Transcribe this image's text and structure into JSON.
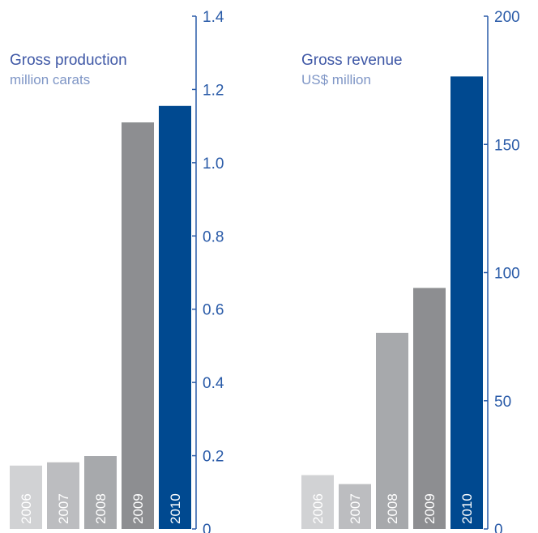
{
  "chart_data": [
    {
      "type": "bar",
      "title": "Gross production",
      "subtitle": "million carats",
      "categories": [
        "2006",
        "2007",
        "2008",
        "2009",
        "2010"
      ],
      "values": [
        0.173,
        0.182,
        0.199,
        1.11,
        1.155
      ],
      "ylim": [
        0,
        1.4
      ],
      "yticks": [
        "0",
        "0.2",
        "0.4",
        "0.6",
        "0.8",
        "1.0",
        "1.2",
        "1.4"
      ],
      "bar_colors": [
        "#d1d2d4",
        "#bcbdc0",
        "#a7a9ac",
        "#8d8e91",
        "#004990"
      ],
      "axis_side": "right",
      "grid": false
    },
    {
      "type": "bar",
      "title": "Gross revenue",
      "subtitle": "US$ million",
      "categories": [
        "2006",
        "2007",
        "2008",
        "2009",
        "2010"
      ],
      "values": [
        21,
        17.5,
        76.5,
        94,
        176.5
      ],
      "ylim": [
        0,
        200
      ],
      "yticks": [
        "0",
        "50",
        "100",
        "150",
        "200"
      ],
      "bar_colors": [
        "#d1d2d4",
        "#bcbdc0",
        "#a7a9ac",
        "#8d8e91",
        "#004990"
      ],
      "axis_side": "right",
      "grid": false
    }
  ],
  "colors": {
    "title": "#3f58a6",
    "subtitle": "#7f96c6",
    "axis": "#2a5ba8",
    "tick_label": "#2a5ba8"
  }
}
